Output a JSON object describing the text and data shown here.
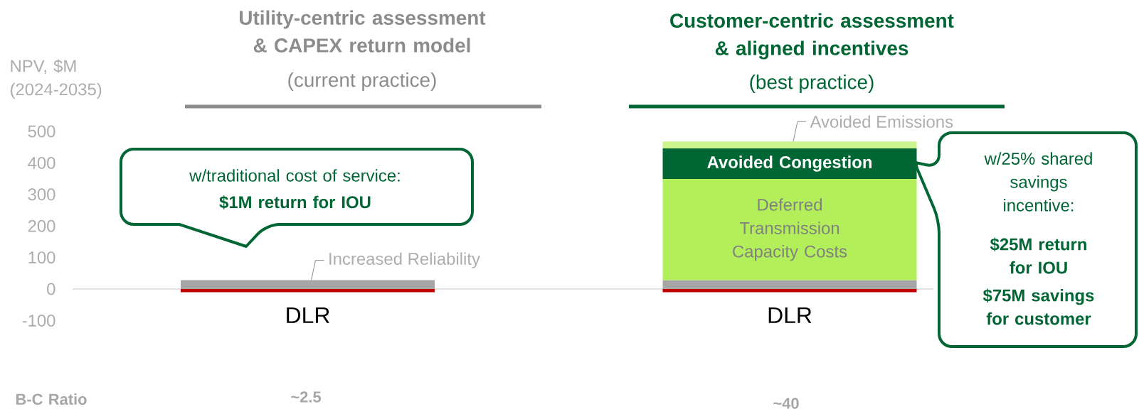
{
  "chart_data": [
    {
      "type": "bar",
      "stacked": true,
      "title": "Utility-centric assessment & CAPEX return model",
      "subtitle": "(current practice)",
      "ylabel": "NPV, $M (2024-2035)",
      "categories": [
        "DLR"
      ],
      "ylim": [
        -100,
        500
      ],
      "yticks": [
        -100,
        0,
        100,
        200,
        300,
        400,
        500
      ],
      "series": [
        {
          "color": "#c00000",
          "values": [
            -10
          ]
        },
        {
          "name": "Increased Reliability",
          "color": "#a6a6a6",
          "values": [
            28
          ]
        }
      ],
      "annotations": [
        "w/traditional cost of service:",
        "$1M return for IOU",
        "B-C Ratio",
        "~2.5"
      ]
    },
    {
      "type": "bar",
      "stacked": true,
      "title": "Customer-centric assessment & aligned incentives",
      "subtitle": "(best practice)",
      "categories": [
        "DLR"
      ],
      "ylim": [
        -100,
        500
      ],
      "yticks": [
        -100,
        0,
        100,
        200,
        300,
        400,
        500
      ],
      "tick_labels": "x",
      "series": [
        {
          "color": "#c00000",
          "values": [
            -10
          ]
        },
        {
          "color": "#a6a6a6",
          "values": [
            28
          ]
        },
        {
          "name": "Deferred Transmission Capacity Costs",
          "color": "#b3ef5a",
          "values": [
            321
          ]
        },
        {
          "name": "Avoided Congestion",
          "color": "#006633",
          "values": [
            97
          ]
        },
        {
          "name": "Avoided Emissions",
          "color": "#ccf58f",
          "values": [
            22
          ]
        }
      ],
      "annotations": [
        "~40",
        "w/25% shared savings incentive:",
        "$25M return for IOU",
        "$75M savings for customer"
      ]
    }
  ]
}
